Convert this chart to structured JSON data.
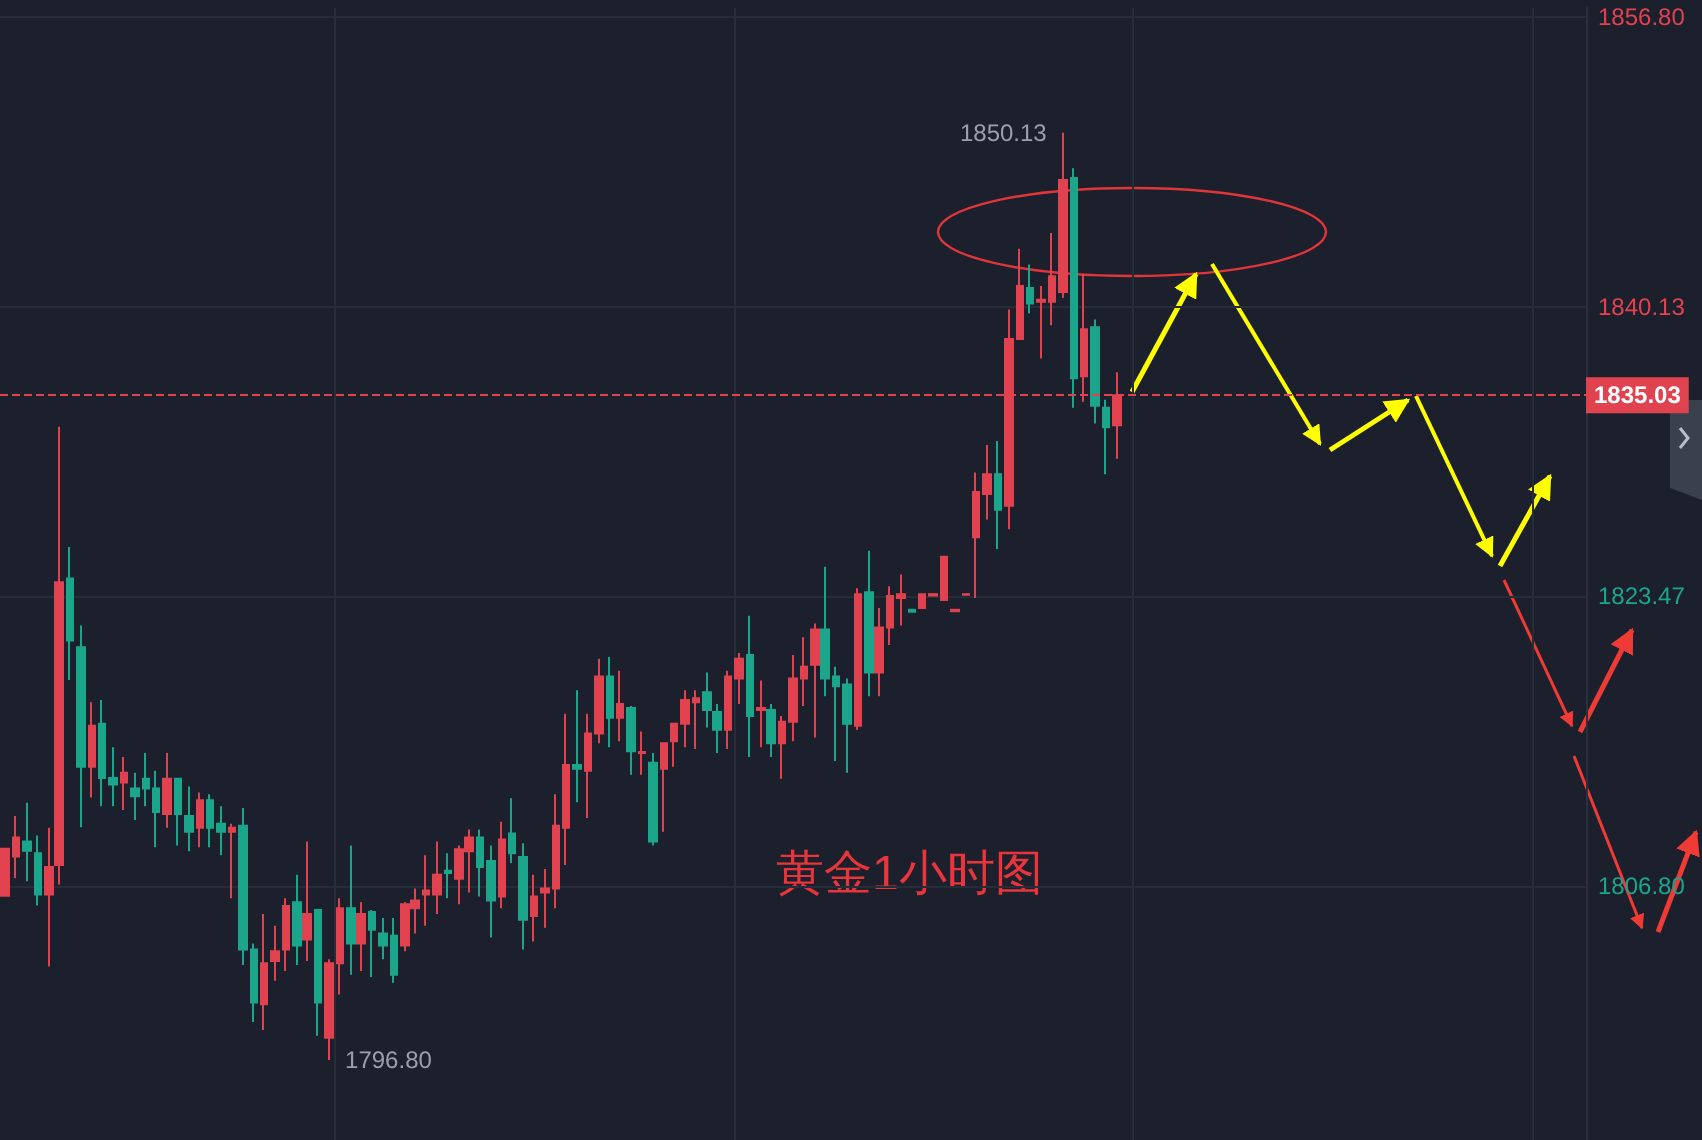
{
  "chart_data": {
    "type": "candlestick",
    "categories": [
      null,
      null,
      null,
      null,
      null,
      null,
      null,
      null,
      null,
      null,
      null,
      null,
      null,
      null,
      null,
      null,
      null,
      null,
      null,
      null,
      null,
      null,
      null,
      null,
      null,
      null,
      null,
      null,
      null,
      null,
      null,
      null,
      null,
      null,
      null,
      null,
      null,
      null,
      null,
      null,
      null,
      null,
      null,
      null,
      null,
      null,
      null,
      null,
      null,
      null,
      null,
      null,
      null,
      null,
      null,
      null,
      null,
      null,
      null,
      null,
      null,
      null,
      null,
      null,
      null,
      null,
      null,
      null,
      null,
      null,
      null,
      null,
      null,
      null,
      null,
      null,
      null,
      null,
      null,
      null,
      null,
      null,
      null,
      null,
      null,
      null,
      null,
      null,
      null,
      null,
      null,
      null,
      null,
      null,
      null,
      null,
      null,
      null,
      null,
      null,
      null,
      null,
      null,
      null,
      null,
      null,
      null,
      null,
      null,
      null,
      null,
      null,
      null,
      null,
      null,
      null,
      null,
      null,
      null,
      null,
      null,
      null,
      null,
      null,
      null,
      null,
      null,
      null,
      null,
      null,
      null,
      null,
      null,
      null,
      null,
      null,
      null,
      null,
      null,
      null,
      null,
      null,
      null,
      null,
      null,
      null,
      null
    ],
    "ohlc": [
      [
        1806.24,
        1808.95,
        1806.24,
        1808.95
      ],
      [
        1808.5,
        1810.84,
        1807.26,
        1809.6
      ],
      [
        1809.37,
        1811.59,
        1807.08,
        1808.84
      ],
      [
        1808.69,
        1809.71,
        1805.68,
        1806.32
      ],
      [
        1806.32,
        1810.16,
        1802.18,
        1807.9
      ],
      [
        1808.02,
        1833.22,
        1806.89,
        1824.27
      ],
      [
        1824.49,
        1826.3,
        1818.66,
        1820.92
      ],
      [
        1820.54,
        1821.79,
        1810.19,
        1813.66
      ],
      [
        1813.66,
        1817.38,
        1811.89,
        1816.03
      ],
      [
        1816.14,
        1817.5,
        1811.4,
        1813.02
      ],
      [
        1813.02,
        1814.79,
        1811.4,
        1812.64
      ],
      [
        1812.76,
        1814.22,
        1811.18,
        1813.32
      ],
      [
        1812.42,
        1813.32,
        1810.61,
        1811.97
      ],
      [
        1812.98,
        1814.45,
        1811.4,
        1812.42
      ],
      [
        1812.42,
        1813.43,
        1809.03,
        1811.06
      ],
      [
        1810.95,
        1814.45,
        1810.16,
        1812.98
      ],
      [
        1812.98,
        1812.98,
        1809.14,
        1810.95
      ],
      [
        1810.84,
        1812.53,
        1808.81,
        1809.93
      ],
      [
        1810.16,
        1812.19,
        1809.03,
        1811.74
      ],
      [
        1811.74,
        1812.08,
        1809.03,
        1810.16
      ],
      [
        1810.39,
        1811.4,
        1808.58,
        1809.93
      ],
      [
        1809.93,
        1810.39,
        1806.1,
        1810.16
      ],
      [
        1810.27,
        1811.29,
        1802.26,
        1803.16
      ],
      [
        1803.16,
        1803.5,
        1798.99,
        1800.11
      ],
      [
        1800.0,
        1805.19,
        1798.53,
        1802.37
      ],
      [
        1802.49,
        1804.52,
        1801.36,
        1803.05
      ],
      [
        1803.16,
        1806.1,
        1801.92,
        1805.65
      ],
      [
        1805.87,
        1807.45,
        1802.26,
        1803.39
      ],
      [
        1803.73,
        1809.37,
        1802.49,
        1805.19
      ],
      [
        1805.42,
        1805.42,
        1798.2,
        1800.11
      ],
      [
        1798.08,
        1802.6,
        1796.8,
        1802.37
      ],
      [
        1802.37,
        1806.1,
        1800.57,
        1805.53
      ],
      [
        1805.53,
        1809.14,
        1801.7,
        1803.5
      ],
      [
        1803.5,
        1805.87,
        1801.92,
        1805.19
      ],
      [
        1805.31,
        1805.42,
        1801.58,
        1804.29
      ],
      [
        1804.07,
        1804.97,
        1802.6,
        1803.39
      ],
      [
        1803.95,
        1804.97,
        1801.24,
        1801.7
      ],
      [
        1803.39,
        1805.87,
        1803.05,
        1805.76
      ],
      [
        1805.53,
        1806.66,
        1804.07,
        1805.98
      ],
      [
        1806.32,
        1808.58,
        1804.52,
        1806.55
      ],
      [
        1806.32,
        1809.37,
        1805.19,
        1807.45
      ],
      [
        1807.68,
        1808.69,
        1806.1,
        1807.56
      ],
      [
        1807.23,
        1809.14,
        1805.76,
        1808.92
      ],
      [
        1808.81,
        1810.05,
        1806.44,
        1809.6
      ],
      [
        1809.6,
        1810.05,
        1806.21,
        1807.9
      ],
      [
        1808.24,
        1809.14,
        1803.84,
        1805.98
      ],
      [
        1806.21,
        1810.5,
        1805.53,
        1809.48
      ],
      [
        1809.82,
        1811.85,
        1808.13,
        1808.69
      ],
      [
        1808.47,
        1809.26,
        1803.16,
        1804.86
      ],
      [
        1805.08,
        1807.45,
        1803.61,
        1806.21
      ],
      [
        1806.44,
        1807.79,
        1804.4,
        1806.66
      ],
      [
        1806.66,
        1812.08,
        1805.53,
        1810.27
      ],
      [
        1810.16,
        1816.71,
        1808.02,
        1813.77
      ],
      [
        1813.77,
        1818.06,
        1811.63,
        1813.55
      ],
      [
        1813.43,
        1816.71,
        1810.72,
        1815.58
      ],
      [
        1815.58,
        1819.87,
        1815.01,
        1818.85
      ],
      [
        1818.85,
        1819.98,
        1814.79,
        1816.48
      ],
      [
        1816.48,
        1819.19,
        1815.13,
        1817.27
      ],
      [
        1817.05,
        1817.16,
        1813.21,
        1814.56
      ],
      [
        1814.45,
        1815.69,
        1813.21,
        1814.51
      ],
      [
        1813.89,
        1814.45,
        1809.14,
        1809.37
      ],
      [
        1813.55,
        1815.01,
        1809.93,
        1815.01
      ],
      [
        1815.13,
        1816.14,
        1813.66,
        1816.14
      ],
      [
        1816.14,
        1818.06,
        1814.79,
        1817.5
      ],
      [
        1817.38,
        1818.06,
        1814.68,
        1817.61
      ],
      [
        1817.95,
        1819.08,
        1815.92,
        1816.93
      ],
      [
        1816.82,
        1817.27,
        1814.45,
        1815.8
      ],
      [
        1815.8,
        1819.19,
        1814.68,
        1818.85
      ],
      [
        1818.74,
        1820.21,
        1817.27,
        1819.87
      ],
      [
        1820.09,
        1822.35,
        1814.22,
        1816.59
      ],
      [
        1816.93,
        1818.63,
        1814.79,
        1817.05
      ],
      [
        1816.93,
        1817.27,
        1814.22,
        1815.01
      ],
      [
        1815.01,
        1816.59,
        1812.98,
        1816.26
      ],
      [
        1816.26,
        1820.09,
        1815.13,
        1818.74
      ],
      [
        1818.74,
        1821.11,
        1817.16,
        1819.42
      ],
      [
        1819.53,
        1821.9,
        1815.35,
        1821.56
      ],
      [
        1821.56,
        1825.17,
        1817.72,
        1818.74
      ],
      [
        1818.85,
        1819.42,
        1814.0,
        1818.29
      ],
      [
        1818.4,
        1818.74,
        1813.32,
        1816.14
      ],
      [
        1816.03,
        1823.93,
        1815.8,
        1823.59
      ],
      [
        1823.7,
        1826.08,
        1817.72,
        1819.08
      ],
      [
        1819.08,
        1822.8,
        1817.72,
        1821.67
      ],
      [
        1821.67,
        1824.04,
        1820.66,
        1823.48
      ],
      [
        1823.37,
        1824.72,
        1821.79,
        1823.59
      ],
      [
        1822.69,
        1822.69,
        1822.58,
        1822.58
      ],
      [
        1822.8,
        1823.59,
        1822.8,
        1823.59
      ],
      [
        1823.51,
        1823.59,
        1823.51,
        1823.59
      ],
      [
        1823.25,
        1825.74,
        1823.25,
        1825.74
      ],
      [
        1822.61,
        1822.69,
        1822.61,
        1822.69
      ],
      [
        1823.56,
        1823.59,
        1823.56,
        1823.59
      ],
      [
        1826.86,
        1830.59,
        1823.37,
        1829.46
      ],
      [
        1829.35,
        1832.17,
        1827.88,
        1830.48
      ],
      [
        1830.48,
        1832.4,
        1826.19,
        1828.45
      ],
      [
        1828.67,
        1839.96,
        1827.32,
        1838.27
      ],
      [
        1838.27,
        1843.46,
        1838.27,
        1841.31
      ],
      [
        1841.2,
        1842.55,
        1839.73,
        1840.3
      ],
      [
        1840.41,
        1841.31,
        1837.14,
        1840.52
      ],
      [
        1840.41,
        1844.36,
        1839.06,
        1841.88
      ],
      [
        1840.97,
        1850.13,
        1840.64,
        1847.41
      ],
      [
        1847.52,
        1848.08,
        1834.31,
        1836.01
      ],
      [
        1836.12,
        1841.99,
        1834.65,
        1838.83
      ],
      [
        1838.94,
        1839.39,
        1833.41,
        1834.43
      ],
      [
        1834.31,
        1834.77,
        1830.48,
        1833.19
      ],
      [
        1833.3,
        1836.35,
        1831.38,
        1835.03
      ],
      null,
      null,
      null,
      null,
      null,
      null,
      null,
      null,
      null,
      null,
      null,
      null,
      null,
      null,
      null,
      null,
      null,
      null,
      null,
      null,
      null,
      null,
      null,
      null,
      null,
      null,
      null,
      null,
      null,
      null,
      null,
      null,
      null,
      null,
      null,
      null,
      null,
      null,
      null,
      null,
      null,
      null,
      null
    ],
    "colors": [
      "#e0434f",
      "#e0434f",
      "#1ba68b",
      "#1ba68b",
      "#e0434f",
      "#e0434f",
      "#1ba68b",
      "#1ba68b",
      "#e0434f",
      "#1ba68b",
      "#1ba68b",
      "#e0434f",
      "#1ba68b",
      "#1ba68b",
      "#1ba68b",
      "#e0434f",
      "#1ba68b",
      "#1ba68b",
      "#e0434f",
      "#1ba68b",
      "#1ba68b",
      "#e0434f",
      "#1ba68b",
      "#1ba68b",
      "#e0434f",
      "#e0434f",
      "#e0434f",
      "#1ba68b",
      "#e0434f",
      "#1ba68b",
      "#e0434f",
      "#e0434f",
      "#1ba68b",
      "#e0434f",
      "#1ba68b",
      "#1ba68b",
      "#1ba68b",
      "#e0434f",
      "#e0434f",
      "#e0434f",
      "#e0434f",
      "#1ba68b",
      "#e0434f",
      "#e0434f",
      "#1ba68b",
      "#1ba68b",
      "#e0434f",
      "#1ba68b",
      "#1ba68b",
      "#e0434f",
      "#e0434f",
      "#e0434f",
      "#e0434f",
      "#1ba68b",
      "#e0434f",
      "#e0434f",
      "#1ba68b",
      "#e0434f",
      "#1ba68b",
      "#e0434f",
      "#1ba68b",
      "#e0434f",
      "#e0434f",
      "#e0434f",
      "#e0434f",
      "#1ba68b",
      "#1ba68b",
      "#e0434f",
      "#e0434f",
      "#1ba68b",
      "#e0434f",
      "#1ba68b",
      "#e0434f",
      "#e0434f",
      "#e0434f",
      "#e0434f",
      "#1ba68b",
      "#1ba68b",
      "#1ba68b",
      "#e0434f",
      "#1ba68b",
      "#e0434f",
      "#e0434f",
      "#e0434f",
      "#1ba68b",
      "#e0434f",
      "#e0434f",
      "#e0434f",
      "#e0434f",
      "#e0434f",
      "#e0434f",
      "#e0434f",
      "#1ba68b",
      "#e0434f",
      "#e0434f",
      "#1ba68b",
      "#e0434f",
      "#e0434f",
      "#e0434f",
      "#1ba68b",
      "#e0434f",
      "#1ba68b",
      "#1ba68b",
      "#e0434f",
      null,
      null,
      null,
      null,
      null,
      null,
      null,
      null,
      null,
      null,
      null,
      null,
      null,
      null,
      null,
      null,
      null,
      null,
      null,
      null,
      null,
      null,
      null,
      null,
      null,
      null,
      null,
      null,
      null,
      null,
      null,
      null,
      null,
      null,
      null,
      null,
      null,
      null,
      null,
      null,
      null,
      null,
      null
    ],
    "ylim": [
      1792.2,
      1857.3
    ],
    "yticks": [
      {
        "value": 1856.8,
        "label": "1856.80"
      },
      {
        "value": 1840.13,
        "label": "1840.13"
      },
      {
        "value": 1823.47,
        "label": "1823.47"
      },
      {
        "value": 1806.8,
        "label": "1806.80"
      }
    ],
    "ref_lines": [
      {
        "axis": "y",
        "value": 1835.03,
        "label": "1835.03",
        "color": "#e0434f",
        "line_style": "dashed"
      }
    ],
    "annotations": [
      "1850.13",
      "1796.80",
      "黄金1小时图"
    ],
    "grid": true,
    "tick_labels": "y"
  }
}
